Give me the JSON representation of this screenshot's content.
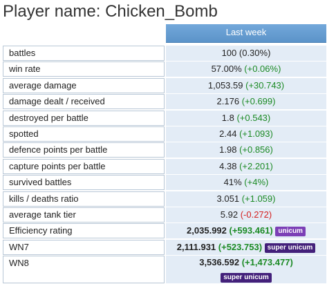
{
  "title": "Player name: Chicken_Bomb",
  "column_header": "Last week",
  "rows": [
    {
      "label": "battles",
      "value": "100",
      "change": "(0.30%)",
      "change_sign": "none"
    },
    {
      "label": "win rate",
      "value": "57.00%",
      "change": "(+0.06%)",
      "change_sign": "pos"
    },
    {
      "label": "average damage",
      "value": "1,053.59",
      "change": "(+30.743)",
      "change_sign": "pos"
    },
    {
      "label": "damage dealt / received",
      "value": "2.176",
      "change": "(+0.699)",
      "change_sign": "pos"
    },
    {
      "label": "destroyed per battle",
      "value": "1.8",
      "change": "(+0.543)",
      "change_sign": "pos"
    },
    {
      "label": "spotted",
      "value": "2.44",
      "change": "(+1.093)",
      "change_sign": "pos"
    },
    {
      "label": "defence points per battle",
      "value": "1.98",
      "change": "(+0.856)",
      "change_sign": "pos"
    },
    {
      "label": "capture points per battle",
      "value": "4.38",
      "change": "(+2.201)",
      "change_sign": "pos"
    },
    {
      "label": "survived battles",
      "value": "41%",
      "change": "(+4%)",
      "change_sign": "pos"
    },
    {
      "label": "kills / deaths ratio",
      "value": "3.051",
      "change": "(+1.059)",
      "change_sign": "pos"
    },
    {
      "label": "average tank tier",
      "value": "5.92",
      "change": "(-0.272)",
      "change_sign": "neg"
    }
  ],
  "ratings": [
    {
      "label": "Efficiency rating",
      "value": "2,035.992",
      "change": "(+593.461)",
      "badge": "unicum"
    },
    {
      "label": "WN7",
      "value": "2,111.931",
      "change": "(+523.753)",
      "badge": "super unicum"
    },
    {
      "label": "WN8",
      "value": "3,536.592",
      "change": "(+1,473.477)",
      "badge": "super unicum"
    }
  ],
  "colors": {
    "header_bg": "#5b93c9",
    "value_bg": "#e3ecf6",
    "positive": "#1b8a24",
    "negative": "#d42020",
    "badge_unicum": "#7c3fb6",
    "badge_super_unicum": "#43207a"
  }
}
